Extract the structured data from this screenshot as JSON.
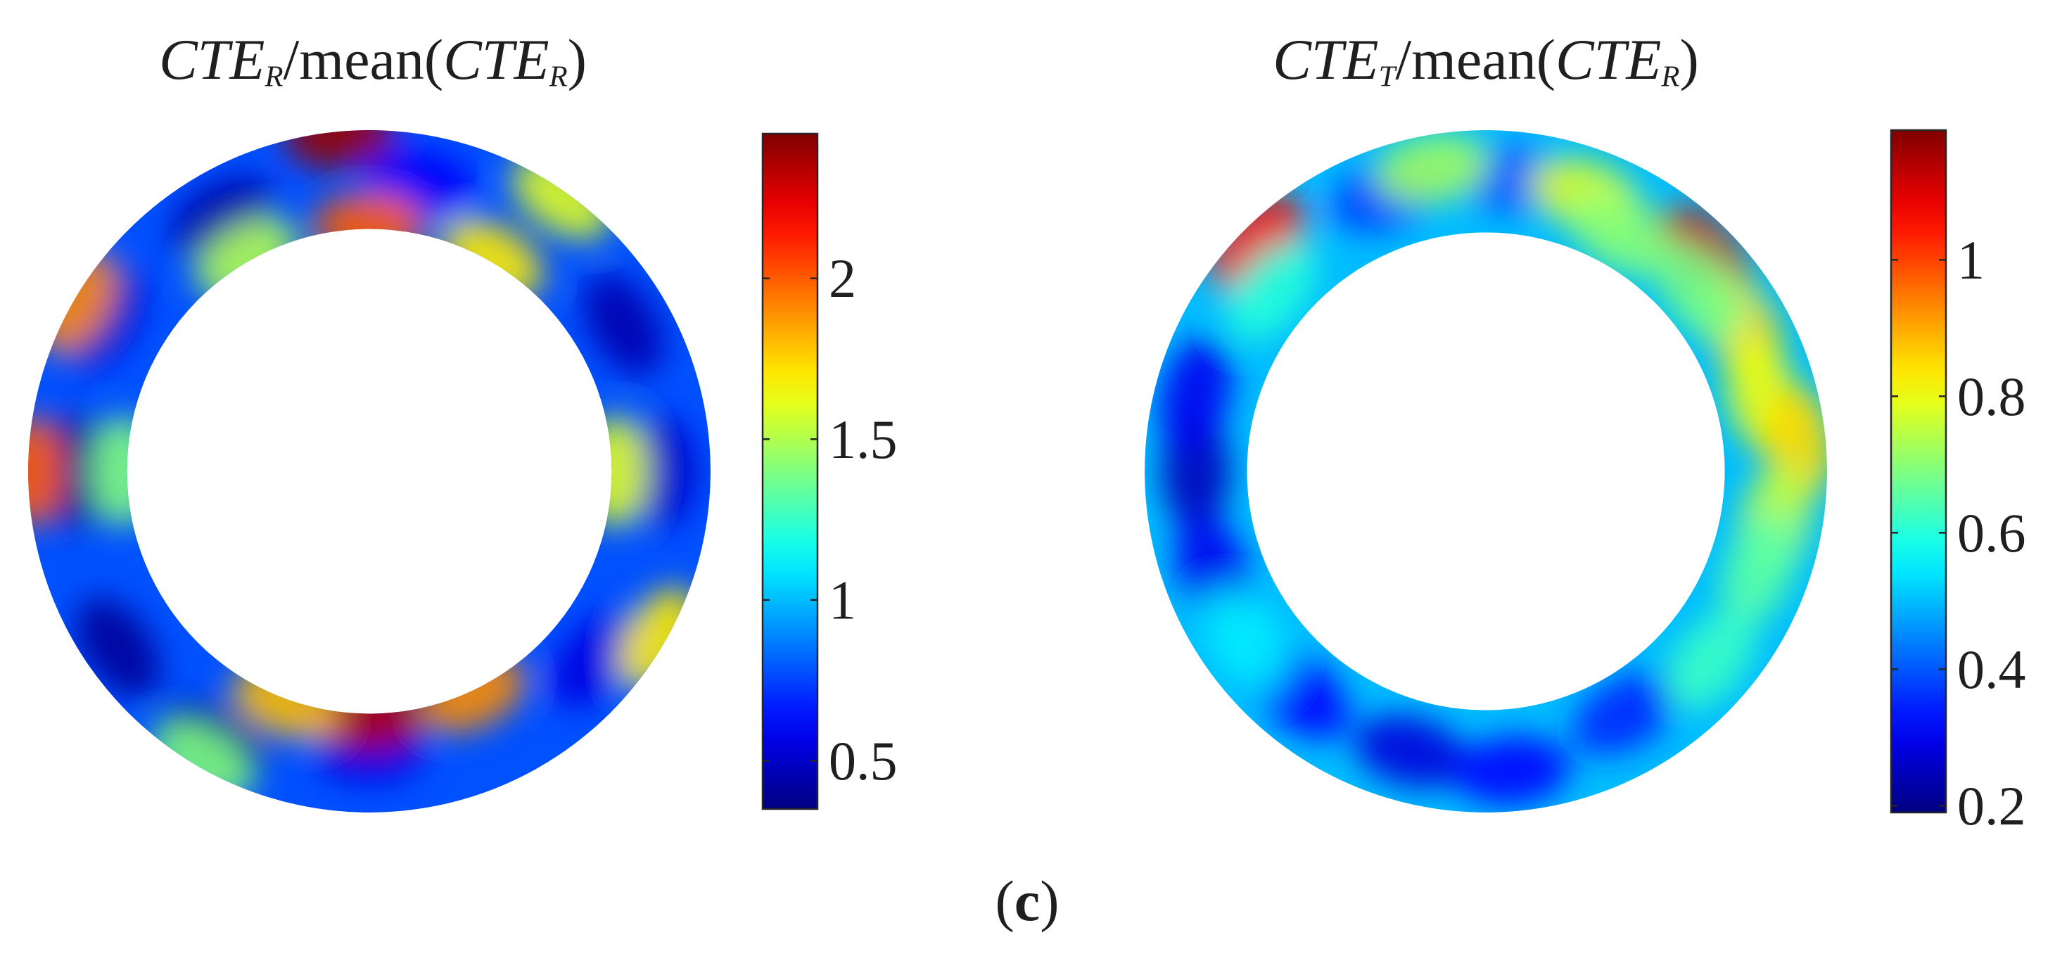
{
  "caption": {
    "open": "(",
    "letter": "c",
    "close": ")"
  },
  "chart_data": [
    {
      "type": "heatmap",
      "title": {
        "num_base": "CTE",
        "num_sub": "R",
        "mid": "/mean(",
        "den_base": "CTE",
        "den_sub": "R",
        "end": ")"
      },
      "colormap": "jet",
      "clim": [
        0.35,
        2.45
      ],
      "colorbar_ticks": [
        0.5,
        1,
        1.5,
        2
      ],
      "colorbar_tick_labels": [
        "0.5",
        "1",
        "1.5",
        "2"
      ],
      "ring_inner_outer_ratio": 0.71,
      "base_value": 0.78,
      "blobs": [
        {
          "angle": 120,
          "r": 0.86,
          "value": 0.42
        },
        {
          "angle": 180,
          "r": 0.86,
          "value": 0.38
        },
        {
          "angle": 215,
          "r": 0.9,
          "value": 0.4
        },
        {
          "angle": 240,
          "r": 0.92,
          "value": 0.36
        },
        {
          "angle": 30,
          "r": 0.86,
          "value": 0.45
        },
        {
          "angle": 0,
          "r": 0.86,
          "value": 0.5
        },
        {
          "angle": 320,
          "r": 0.86,
          "value": 0.55
        },
        {
          "angle": 270,
          "r": 0.82,
          "value": 0.55
        },
        {
          "angle": 80,
          "r": 0.86,
          "value": 0.6
        },
        {
          "angle": 150,
          "r": 0.9,
          "value": 0.5
        },
        {
          "angle": 270,
          "r": 0.72,
          "value": 2.35
        },
        {
          "angle": 295,
          "r": 0.72,
          "value": 1.9
        },
        {
          "angle": 250,
          "r": 0.72,
          "value": 1.8
        },
        {
          "angle": 90,
          "r": 0.72,
          "value": 2.0
        },
        {
          "angle": 60,
          "r": 0.72,
          "value": 1.7
        },
        {
          "angle": 120,
          "r": 0.72,
          "value": 1.5
        },
        {
          "angle": 0,
          "r": 0.72,
          "value": 1.6
        },
        {
          "angle": 180,
          "r": 0.72,
          "value": 1.4
        },
        {
          "angle": 95,
          "r": 0.99,
          "value": 2.4
        },
        {
          "angle": 180,
          "r": 0.99,
          "value": 2.0
        },
        {
          "angle": 150,
          "r": 0.99,
          "value": 1.9
        },
        {
          "angle": 55,
          "r": 0.98,
          "value": 1.6
        },
        {
          "angle": 330,
          "r": 0.98,
          "value": 1.7
        },
        {
          "angle": 240,
          "r": 0.98,
          "value": 1.4
        }
      ]
    },
    {
      "type": "heatmap",
      "title": {
        "num_base": "CTE",
        "num_sub": "T",
        "mid": "/mean(",
        "den_base": "CTE",
        "den_sub": "R",
        "end": ")"
      },
      "colormap": "jet",
      "clim": [
        0.19,
        1.19
      ],
      "colorbar_ticks": [
        0.2,
        0.4,
        0.6,
        0.8,
        1
      ],
      "colorbar_tick_labels": [
        "0.2",
        "0.4",
        "0.6",
        "0.8",
        "1"
      ],
      "ring_inner_outer_ratio": 0.7,
      "base_value": 0.5,
      "blobs": [
        {
          "angle": 180,
          "r": 0.85,
          "value": 0.25
        },
        {
          "angle": 165,
          "r": 0.88,
          "value": 0.3
        },
        {
          "angle": 200,
          "r": 0.85,
          "value": 0.3
        },
        {
          "angle": 255,
          "r": 0.85,
          "value": 0.28
        },
        {
          "angle": 275,
          "r": 0.88,
          "value": 0.32
        },
        {
          "angle": 230,
          "r": 0.85,
          "value": 0.32
        },
        {
          "angle": 300,
          "r": 0.82,
          "value": 0.35
        },
        {
          "angle": 110,
          "r": 0.86,
          "value": 0.38
        },
        {
          "angle": 85,
          "r": 0.86,
          "value": 0.4
        },
        {
          "angle": 45,
          "r": 0.9,
          "value": 1.12
        },
        {
          "angle": 135,
          "r": 0.95,
          "value": 1.05
        },
        {
          "angle": 30,
          "r": 0.86,
          "value": 0.85
        },
        {
          "angle": 15,
          "r": 0.84,
          "value": 0.8
        },
        {
          "angle": 5,
          "r": 0.92,
          "value": 0.85
        },
        {
          "angle": 350,
          "r": 0.86,
          "value": 0.75
        },
        {
          "angle": 70,
          "r": 0.86,
          "value": 0.78
        },
        {
          "angle": 100,
          "r": 0.9,
          "value": 0.72
        },
        {
          "angle": 60,
          "r": 0.8,
          "value": 0.7
        },
        {
          "angle": 40,
          "r": 0.82,
          "value": 0.68
        },
        {
          "angle": 340,
          "r": 0.85,
          "value": 0.65
        },
        {
          "angle": 320,
          "r": 0.86,
          "value": 0.62
        },
        {
          "angle": 215,
          "r": 0.86,
          "value": 0.55
        },
        {
          "angle": 140,
          "r": 0.82,
          "value": 0.6
        }
      ]
    }
  ]
}
